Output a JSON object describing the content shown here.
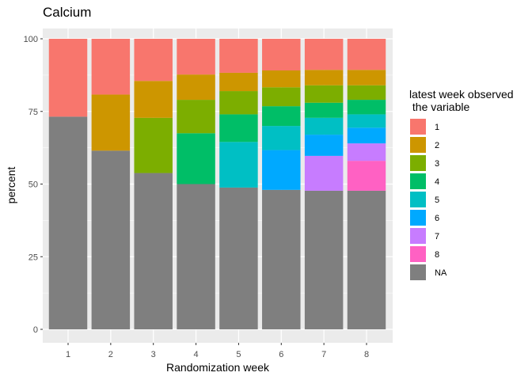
{
  "chart_data": {
    "type": "bar",
    "stacked": true,
    "title": "Calcium",
    "xlabel": "Randomization week",
    "ylabel": "percent",
    "categories": [
      "1",
      "2",
      "3",
      "4",
      "5",
      "6",
      "7",
      "8"
    ],
    "ylim": [
      0,
      100
    ],
    "yticks": [
      0,
      25,
      50,
      75,
      100
    ],
    "grid": true,
    "legend": {
      "title": "latest week observed\n the variable",
      "position": "right"
    },
    "series": [
      {
        "name": "NA",
        "color": "#7f7f7f",
        "values": [
          73.2,
          61.5,
          53.8,
          50.0,
          48.8,
          48.0,
          47.7,
          47.7
        ]
      },
      {
        "name": "8",
        "color": "#ff61c3",
        "values": [
          0,
          0,
          0,
          0,
          0,
          0,
          0,
          10.3
        ]
      },
      {
        "name": "7",
        "color": "#c77cff",
        "values": [
          0,
          0,
          0,
          0,
          0,
          0,
          12.0,
          6.0
        ]
      },
      {
        "name": "6",
        "color": "#00a9ff",
        "values": [
          0,
          0,
          0,
          0,
          0,
          13.7,
          7.3,
          5.4
        ]
      },
      {
        "name": "5",
        "color": "#00bfc4",
        "values": [
          0,
          0,
          0,
          0,
          15.7,
          8.3,
          5.8,
          4.6
        ]
      },
      {
        "name": "4",
        "color": "#00be67",
        "values": [
          0,
          0,
          0,
          17.5,
          9.5,
          6.8,
          5.2,
          5.0
        ]
      },
      {
        "name": "3",
        "color": "#7cae00",
        "values": [
          0,
          0,
          19.0,
          11.5,
          8.0,
          6.5,
          6.0,
          5.0
        ]
      },
      {
        "name": "2",
        "color": "#cd9600",
        "values": [
          0,
          19.3,
          12.7,
          8.7,
          6.3,
          5.8,
          5.3,
          5.3
        ]
      },
      {
        "name": "1",
        "color": "#f8766d",
        "values": [
          26.8,
          19.2,
          14.5,
          12.3,
          11.7,
          10.9,
          10.7,
          10.7
        ]
      }
    ],
    "legend_order": [
      "1",
      "2",
      "3",
      "4",
      "5",
      "6",
      "7",
      "8",
      "NA"
    ]
  }
}
